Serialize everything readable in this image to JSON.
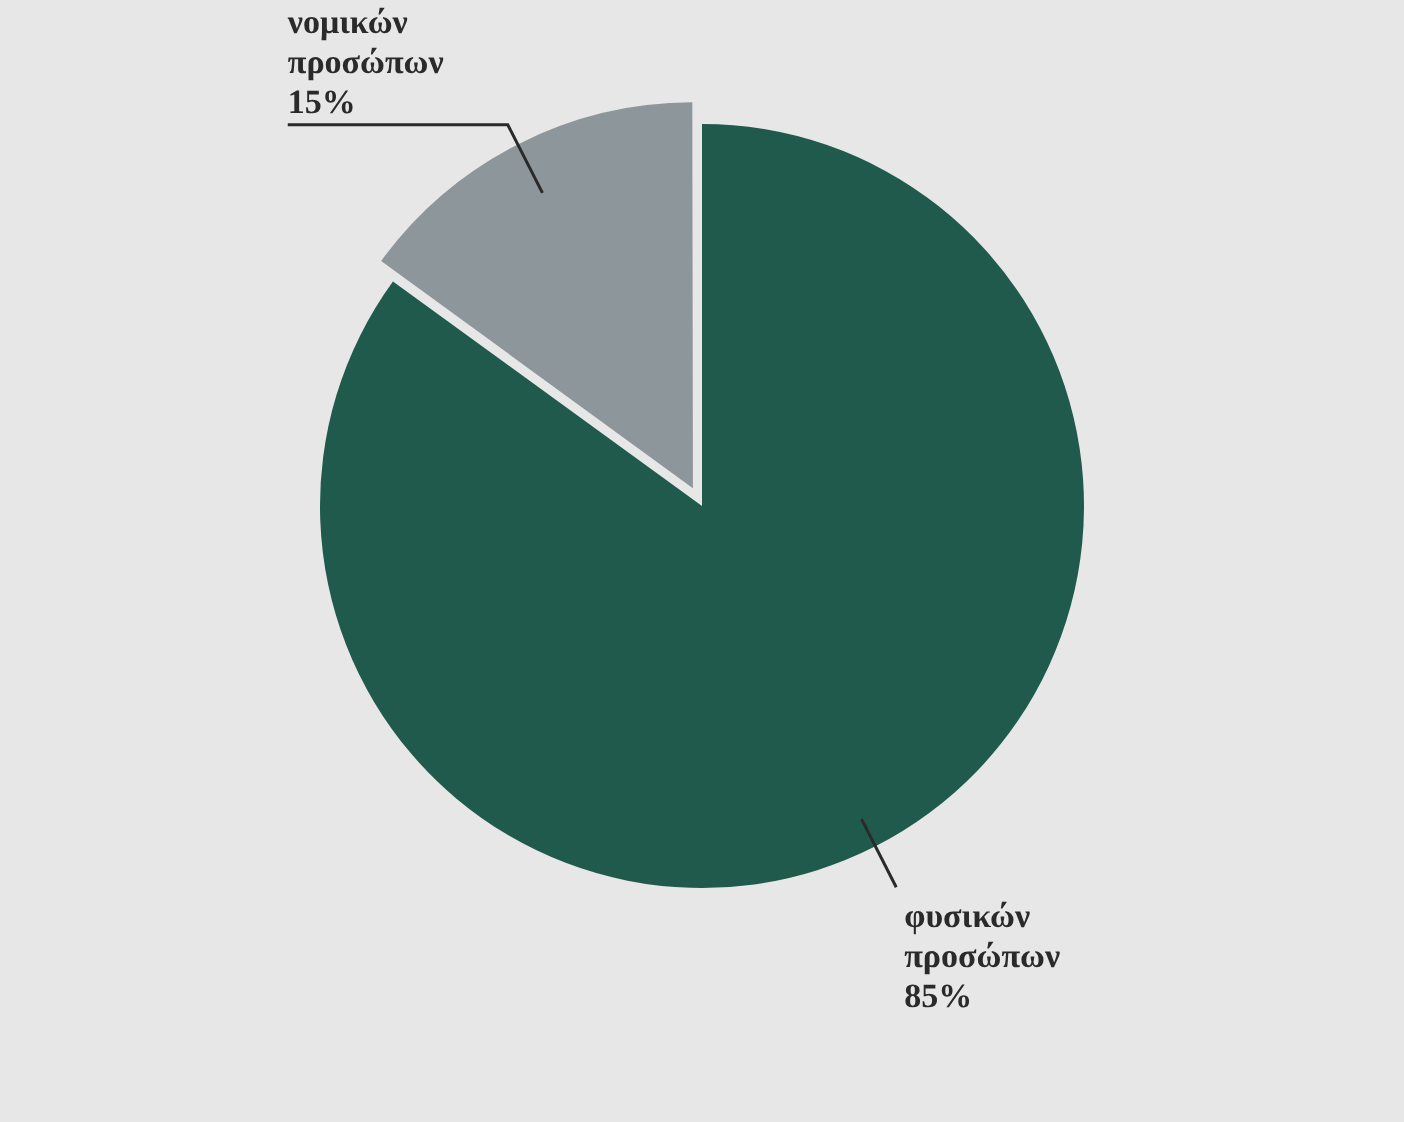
{
  "chart_data": {
    "type": "pie",
    "categories": [
      "φυσικών προσώπων",
      "νομικών προσώπων"
    ],
    "values": [
      85,
      15
    ],
    "colors": [
      "#1f5a4c",
      "#8d979b"
    ],
    "value_labels": [
      "85%",
      "15%"
    ]
  }
}
